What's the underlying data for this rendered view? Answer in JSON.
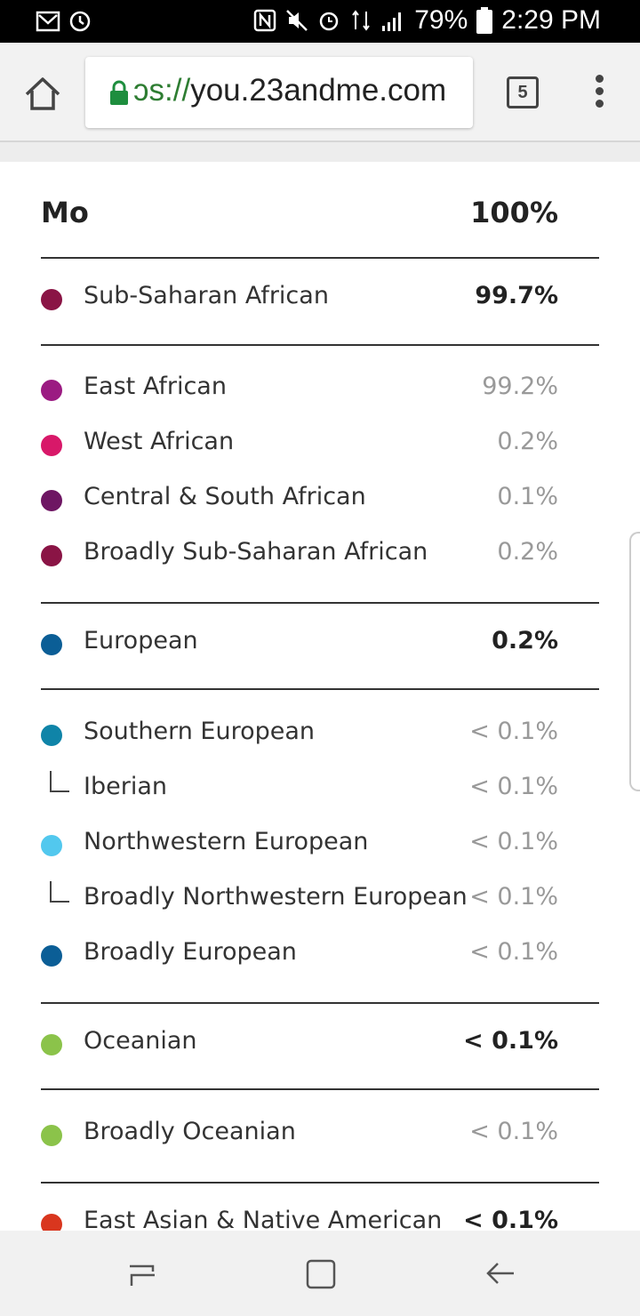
{
  "status_bar": {
    "battery": "79%",
    "time": "2:29 PM",
    "icons": [
      "gmail-icon",
      "sync-icon",
      "nfc-icon",
      "mute-icon",
      "alarm-icon",
      "lte-icon",
      "signal-icon",
      "battery-icon"
    ]
  },
  "browser": {
    "url_scheme": "ɔs://",
    "url_host": "you.23andme.com",
    "tab_count": "5"
  },
  "report": {
    "header": {
      "title": "Mo",
      "percent": "100%"
    },
    "rows": [
      {
        "label": "Sub-Saharan African",
        "value": "99.7%",
        "color": "#8a1445"
      },
      {
        "label": "East African",
        "value": "99.2%",
        "color": "#9b1b82"
      },
      {
        "label": "West African",
        "value": "0.2%",
        "color": "#d81869"
      },
      {
        "label": "Central & South African",
        "value": "0.1%",
        "color": "#6e1663"
      },
      {
        "label": "Broadly Sub-Saharan African",
        "value": "0.2%",
        "color": "#8a1445"
      },
      {
        "label": "European",
        "value": "0.2%",
        "color": "#0b5e96"
      },
      {
        "label": "Southern European",
        "value": "< 0.1%",
        "color": "#0f84a8"
      },
      {
        "label": "Iberian",
        "value": "< 0.1%"
      },
      {
        "label": "Northwestern European",
        "value": "< 0.1%",
        "color": "#52c8ee"
      },
      {
        "label": "Broadly Northwestern European",
        "value": "< 0.1%"
      },
      {
        "label": "Broadly European",
        "value": "< 0.1%",
        "color": "#0b5e96"
      },
      {
        "label": "Oceanian",
        "value": "< 0.1%",
        "color": "#8bc34a"
      },
      {
        "label": "Broadly Oceanian",
        "value": "< 0.1%",
        "color": "#8bc34a"
      },
      {
        "label": "East Asian & Native American",
        "value": "< 0.1%",
        "color": "#d9361e"
      }
    ]
  }
}
